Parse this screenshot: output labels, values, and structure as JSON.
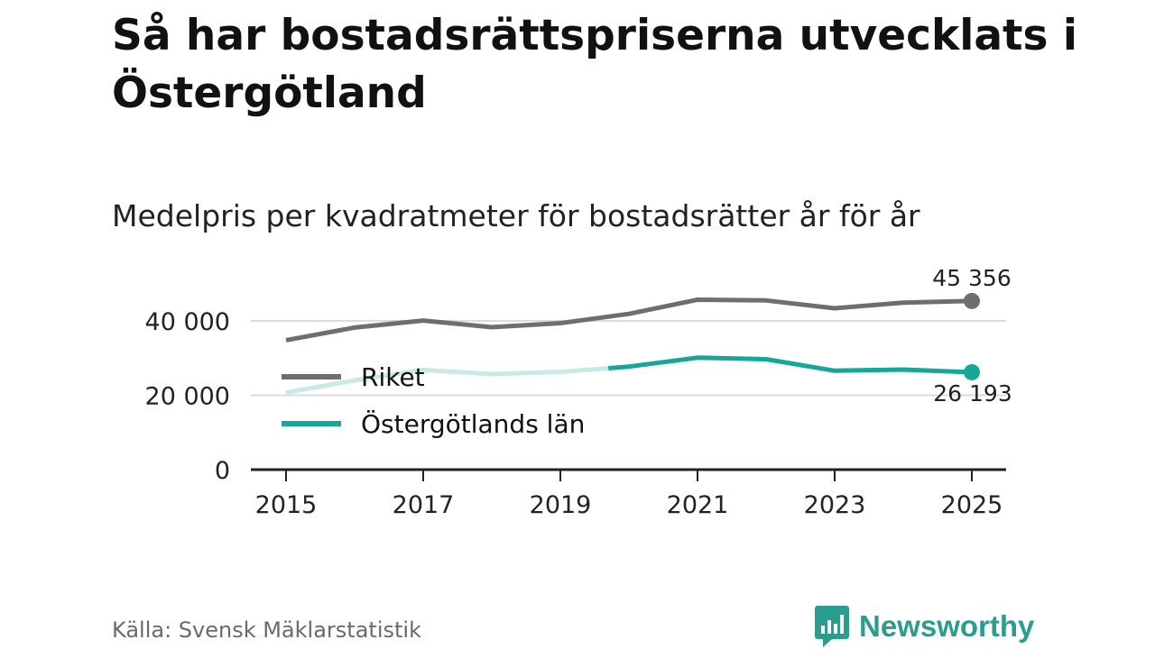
{
  "title": "Så har bostadsrättspriserna utvecklats i Östergötland",
  "subtitle": "Medelpris per kvadratmeter för bostadsrätter år för år",
  "source": "Källa: Svensk Mäklarstatistik",
  "brand": {
    "name": "Newsworthy",
    "icon": "bar-chart-speech-bubble-icon",
    "color": "#2a9d8f"
  },
  "chart_data": {
    "type": "line",
    "title": "Medelpris per kvadratmeter för bostadsrätter år för år",
    "xlabel": "",
    "ylabel": "",
    "x": [
      2015,
      2016,
      2017,
      2018,
      2019,
      2020,
      2021,
      2022,
      2023,
      2024,
      2025
    ],
    "xticks": [
      "2015",
      "2017",
      "2019",
      "2021",
      "2023",
      "2025"
    ],
    "yticks": [
      0,
      20000,
      40000
    ],
    "ytick_labels": [
      "0",
      "20 000",
      "40 000"
    ],
    "ylim": [
      0,
      45356
    ],
    "grid": true,
    "legend_position": "left, middle",
    "series": [
      {
        "name": "Riket",
        "color": "#6e6d73",
        "values": [
          34800,
          38200,
          40100,
          38300,
          39400,
          41900,
          45700,
          45500,
          43400,
          44900,
          45356
        ],
        "end_label": "45 356"
      },
      {
        "name": "Östergötlands län",
        "color": "#16a69a",
        "faded_color": "#c8eae6",
        "faded_until": 2019.7,
        "values": [
          20700,
          24000,
          26800,
          25700,
          26300,
          27700,
          30100,
          29700,
          26600,
          26900,
          26193
        ],
        "end_label": "26 193"
      }
    ]
  }
}
